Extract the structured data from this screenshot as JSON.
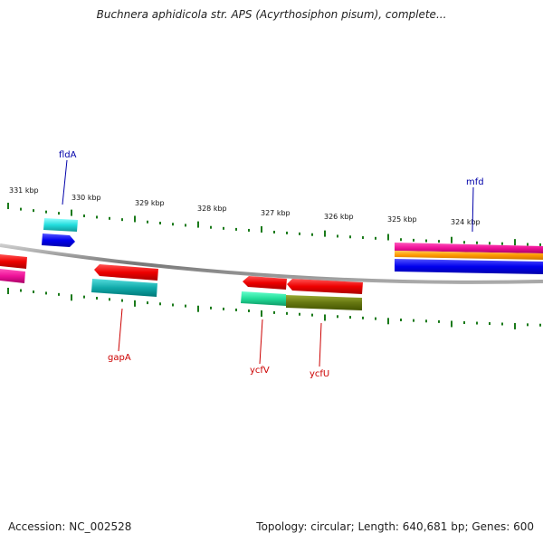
{
  "title": "Buchnera aphidicola str. APS (Acyrthosiphon pisum), complete...",
  "footer": {
    "accession": "Accession: NC_002528",
    "summary": "Topology: circular; Length: 640,681 bp; Genes: 600"
  },
  "ticks": [
    "331 kbp",
    "330 kbp",
    "329 kbp",
    "328 kbp",
    "327 kbp",
    "326 kbp",
    "325 kbp",
    "324 kbp"
  ],
  "genes": {
    "fldA": "fldA",
    "mfd": "mfd",
    "gapA": "gapA",
    "ycfV": "ycfV",
    "ycfU": "ycfU"
  },
  "colors": {
    "forward_label": "#0000aa",
    "reverse_label": "#cc0000",
    "tick": "#1a7a1a",
    "backbone": "#888888",
    "red": "#ee0000",
    "magenta": "#ee1199",
    "cyan": "#22dddd",
    "blue": "#0000ee",
    "orange": "#ff9900",
    "teal": "#11aaaa",
    "green": "#22dd99",
    "olive": "#667711"
  }
}
